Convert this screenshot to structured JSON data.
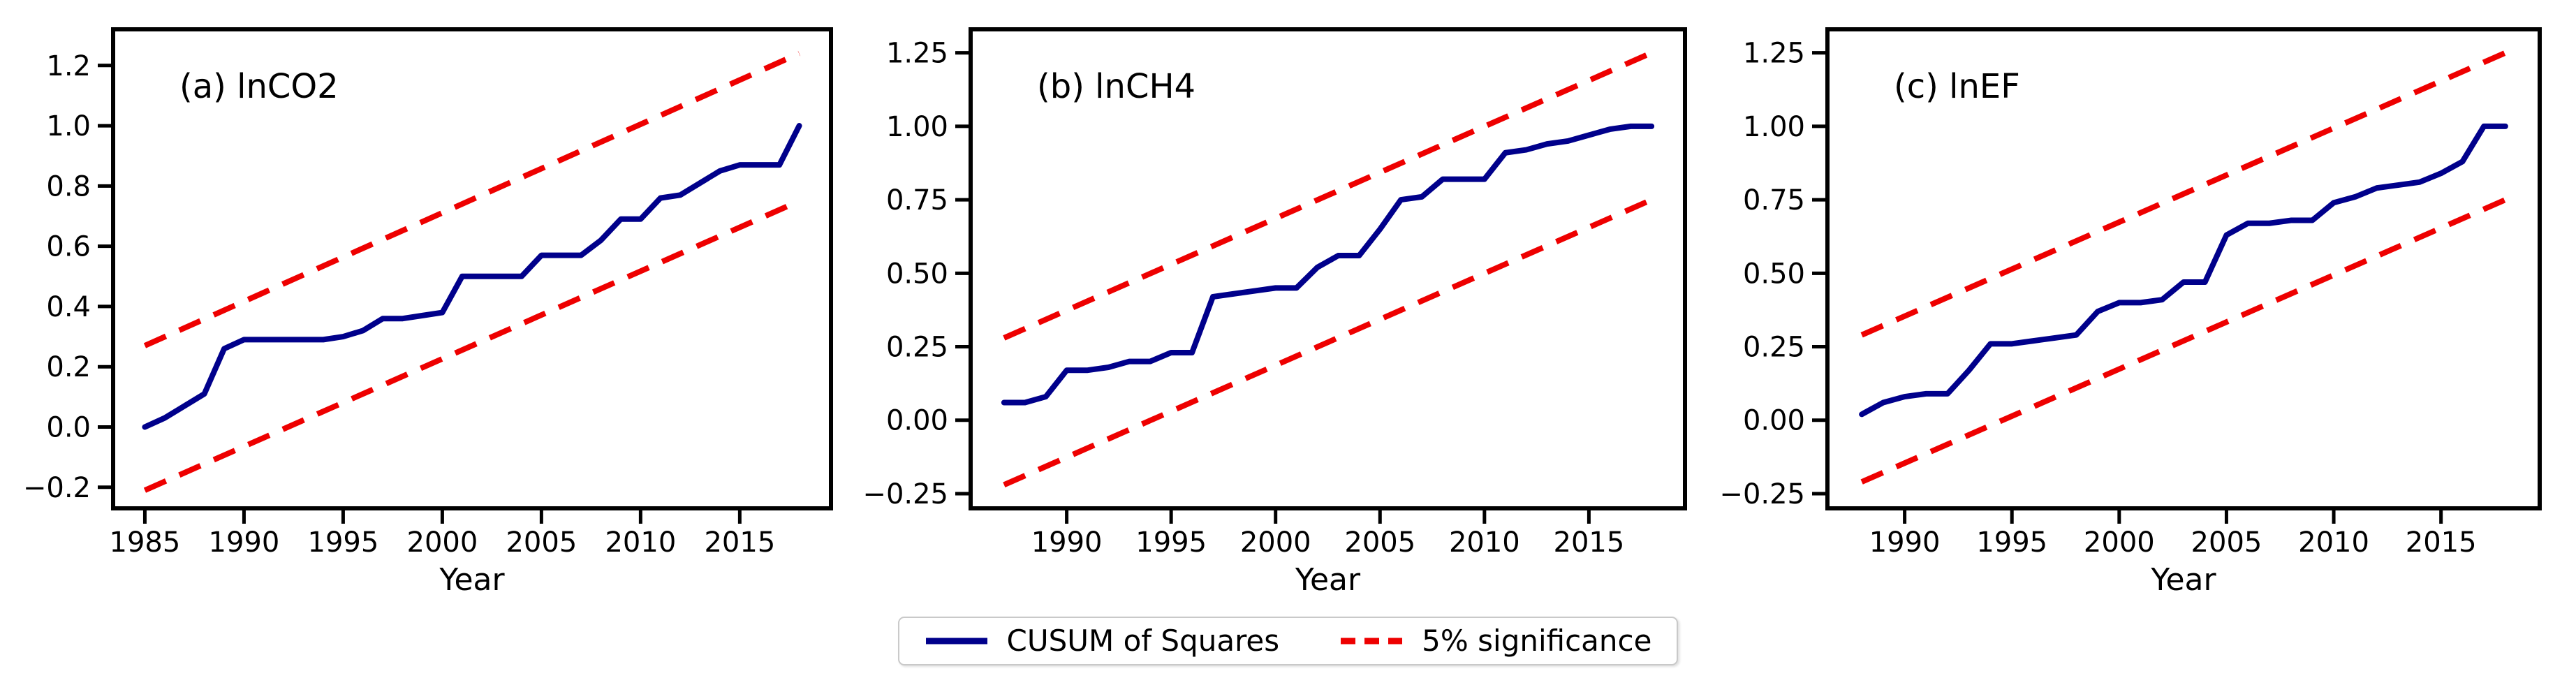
{
  "figure": {
    "xlabel": "Year",
    "background": "#ffffff",
    "colors": {
      "cusum_line": "#00008b",
      "significance_band": "#ee0000",
      "axis": "#000000"
    }
  },
  "legend": {
    "entries": [
      {
        "label": "CUSUM of Squares",
        "color": "#00008b",
        "dash": false
      },
      {
        "label": "5% significance",
        "color": "#ee0000",
        "dash": true
      }
    ]
  },
  "chart_data": [
    {
      "type": "line",
      "id": "a",
      "title": "(a) lnCO2",
      "xlabel": "Year",
      "grid": false,
      "x": [
        1985,
        1986,
        1987,
        1988,
        1989,
        1990,
        1991,
        1992,
        1993,
        1994,
        1995,
        1996,
        1997,
        1998,
        1999,
        2000,
        2001,
        2002,
        2003,
        2004,
        2005,
        2006,
        2007,
        2008,
        2009,
        2010,
        2011,
        2012,
        2013,
        2014,
        2015,
        2016,
        2017,
        2018
      ],
      "series": [
        {
          "name": "CUSUM of Squares",
          "color": "#00008b",
          "style": "solid",
          "values": [
            0.0,
            0.03,
            0.07,
            0.11,
            0.26,
            0.29,
            0.29,
            0.29,
            0.29,
            0.29,
            0.3,
            0.32,
            0.36,
            0.36,
            0.37,
            0.38,
            0.5,
            0.5,
            0.5,
            0.5,
            0.57,
            0.57,
            0.57,
            0.62,
            0.69,
            0.69,
            0.76,
            0.77,
            0.81,
            0.85,
            0.87,
            0.87,
            0.87,
            1.0
          ]
        },
        {
          "name": "5% significance lower",
          "color": "#ee0000",
          "style": "dashed",
          "x": [
            1985,
            2018
          ],
          "values": [
            -0.21,
            0.75
          ]
        },
        {
          "name": "5% significance upper",
          "color": "#ee0000",
          "style": "dashed",
          "x": [
            1985,
            2018
          ],
          "values": [
            0.27,
            1.24
          ]
        }
      ],
      "xlim": [
        1983.4,
        2019.6
      ],
      "ylim": [
        -0.27,
        1.32
      ],
      "xticks": [
        1985,
        1990,
        1995,
        2000,
        2005,
        2010,
        2015
      ],
      "yticks": [
        -0.2,
        0.0,
        0.2,
        0.4,
        0.6,
        0.8,
        1.0,
        1.2
      ],
      "ytick_decimals": 1,
      "legend_position": "bottom-center"
    },
    {
      "type": "line",
      "id": "b",
      "title": "(b) lnCH4",
      "xlabel": "Year",
      "grid": false,
      "x": [
        1987,
        1988,
        1989,
        1990,
        1991,
        1992,
        1993,
        1994,
        1995,
        1996,
        1997,
        1998,
        1999,
        2000,
        2001,
        2002,
        2003,
        2004,
        2005,
        2006,
        2007,
        2008,
        2009,
        2010,
        2011,
        2012,
        2013,
        2014,
        2015,
        2016,
        2017,
        2018
      ],
      "series": [
        {
          "name": "CUSUM of Squares",
          "color": "#00008b",
          "style": "solid",
          "values": [
            0.06,
            0.06,
            0.08,
            0.17,
            0.17,
            0.18,
            0.2,
            0.2,
            0.23,
            0.23,
            0.42,
            0.43,
            0.44,
            0.45,
            0.45,
            0.52,
            0.56,
            0.56,
            0.65,
            0.75,
            0.76,
            0.82,
            0.82,
            0.82,
            0.91,
            0.92,
            0.94,
            0.95,
            0.97,
            0.99,
            1.0,
            1.0
          ]
        },
        {
          "name": "5% significance lower",
          "color": "#ee0000",
          "style": "dashed",
          "x": [
            1987,
            2018
          ],
          "values": [
            -0.22,
            0.75
          ]
        },
        {
          "name": "5% significance upper",
          "color": "#ee0000",
          "style": "dashed",
          "x": [
            1987,
            2018
          ],
          "values": [
            0.28,
            1.25
          ]
        }
      ],
      "xlim": [
        1985.4,
        2019.6
      ],
      "ylim": [
        -0.3,
        1.33
      ],
      "xticks": [
        1990,
        1995,
        2000,
        2005,
        2010,
        2015
      ],
      "yticks": [
        -0.25,
        0.0,
        0.25,
        0.5,
        0.75,
        1.0,
        1.25
      ],
      "ytick_decimals": 2,
      "legend_position": "bottom-center"
    },
    {
      "type": "line",
      "id": "c",
      "title": "(c) lnEF",
      "xlabel": "Year",
      "grid": false,
      "x": [
        1988,
        1989,
        1990,
        1991,
        1992,
        1993,
        1994,
        1995,
        1996,
        1997,
        1998,
        1999,
        2000,
        2001,
        2002,
        2003,
        2004,
        2005,
        2006,
        2007,
        2008,
        2009,
        2010,
        2011,
        2012,
        2013,
        2014,
        2015,
        2016,
        2017,
        2018
      ],
      "series": [
        {
          "name": "CUSUM of Squares",
          "color": "#00008b",
          "style": "solid",
          "values": [
            0.02,
            0.06,
            0.08,
            0.09,
            0.09,
            0.17,
            0.26,
            0.26,
            0.27,
            0.28,
            0.29,
            0.37,
            0.4,
            0.4,
            0.41,
            0.47,
            0.47,
            0.63,
            0.67,
            0.67,
            0.68,
            0.68,
            0.74,
            0.76,
            0.79,
            0.8,
            0.81,
            0.84,
            0.88,
            1.0,
            1.0
          ]
        },
        {
          "name": "5% significance lower",
          "color": "#ee0000",
          "style": "dashed",
          "x": [
            1988,
            2018
          ],
          "values": [
            -0.21,
            0.75
          ]
        },
        {
          "name": "5% significance upper",
          "color": "#ee0000",
          "style": "dashed",
          "x": [
            1988,
            2018
          ],
          "values": [
            0.29,
            1.25
          ]
        }
      ],
      "xlim": [
        1986.4,
        2019.6
      ],
      "ylim": [
        -0.3,
        1.33
      ],
      "xticks": [
        1990,
        1995,
        2000,
        2005,
        2010,
        2015
      ],
      "yticks": [
        -0.25,
        0.0,
        0.25,
        0.5,
        0.75,
        1.0,
        1.25
      ],
      "ytick_decimals": 2,
      "legend_position": "bottom-center"
    }
  ]
}
